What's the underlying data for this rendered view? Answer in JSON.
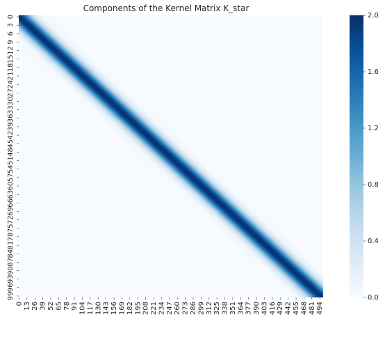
{
  "chart_data": {
    "type": "heatmap",
    "title": "Components of the Kernel Matrix K_star",
    "xlabel": "",
    "ylabel": "",
    "colormap": "Blues",
    "color_low": "#f7fbff",
    "color_high": "#08306b",
    "n_rows": 100,
    "n_cols": 500,
    "value_range": [
      0.0,
      2.0
    ],
    "diagonal_peak": 2.0,
    "diagonal_slope": 5.0,
    "band_halfwidth_cols": 20,
    "x_tick_labels": [
      "0",
      "13",
      "26",
      "39",
      "52",
      "65",
      "78",
      "91",
      "104",
      "117",
      "130",
      "143",
      "156",
      "169",
      "182",
      "195",
      "208",
      "221",
      "234",
      "247",
      "260",
      "273",
      "286",
      "299",
      "312",
      "325",
      "338",
      "351",
      "364",
      "377",
      "390",
      "403",
      "416",
      "429",
      "442",
      "455",
      "468",
      "481",
      "494"
    ],
    "y_tick_labels": [
      "0",
      "3",
      "6",
      "9",
      "12",
      "15",
      "18",
      "21",
      "24",
      "27",
      "30",
      "33",
      "36",
      "39",
      "42",
      "45",
      "48",
      "51",
      "54",
      "57",
      "60",
      "63",
      "66",
      "69",
      "72",
      "75",
      "78",
      "81",
      "84",
      "87",
      "90",
      "93",
      "96",
      "99"
    ],
    "colorbar_ticks": [
      "0.0",
      "0.4",
      "0.8",
      "1.2",
      "1.6",
      "2.0"
    ],
    "colorbar_tick_values": [
      0.0,
      0.4,
      0.8,
      1.2,
      1.6,
      2.0
    ]
  }
}
